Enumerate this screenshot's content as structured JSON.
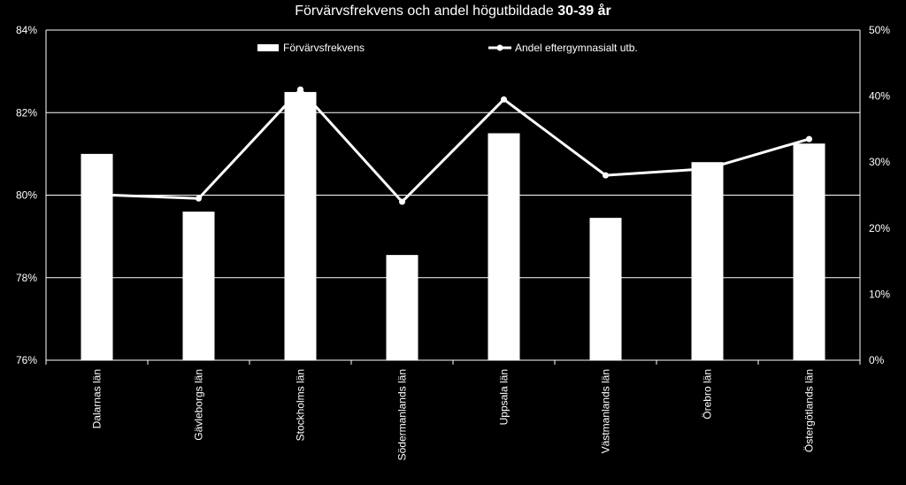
{
  "chart_data": {
    "type": "bar",
    "title_main": "Förvärvsfrekvens och andel högutbildade",
    "title_bold": "30-39 år",
    "categories": [
      "Dalarnas län",
      "Gävleborgs län",
      "Stockholms län",
      "Södermanlands län",
      "Uppsala län",
      "Västmanlands län",
      "Örebro län",
      "Östergötlands län"
    ],
    "series": [
      {
        "name": "Förvärvsfrekvens",
        "type": "bar",
        "axis": "left",
        "values": [
          81.0,
          79.6,
          82.5,
          78.55,
          81.5,
          79.45,
          80.8,
          81.25
        ]
      },
      {
        "name": "Andel eftergymnasialt utb.",
        "type": "line",
        "axis": "right",
        "values": [
          25.0,
          24.5,
          41.0,
          24.0,
          39.5,
          28.0,
          29.0,
          33.5
        ]
      }
    ],
    "y_left": {
      "lim": [
        76,
        84
      ],
      "ticks": [
        "76%",
        "78%",
        "80%",
        "82%",
        "84%"
      ]
    },
    "y_right": {
      "lim": [
        0,
        50
      ],
      "ticks": [
        "0%",
        "10%",
        "20%",
        "30%",
        "40%",
        "50%"
      ]
    },
    "grid": true,
    "legend": "top-center",
    "colors": {
      "background": "#000000",
      "bar": "#ffffff",
      "line": "#ffffff",
      "grid": "#ffffff",
      "text": "#ffffff"
    }
  }
}
